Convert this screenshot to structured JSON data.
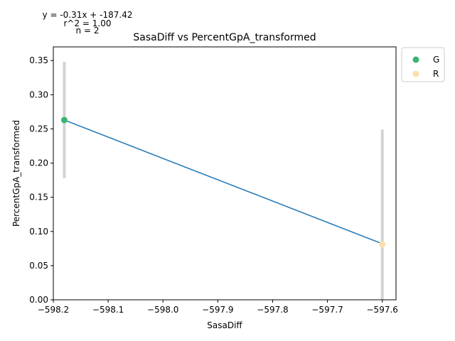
{
  "chart_data": {
    "type": "scatter",
    "title": "SasaDiff vs PercentGpA_transformed",
    "xlabel": "SasaDiff",
    "ylabel": "PercentGpA_transformed",
    "xlim": [
      -598.2,
      -597.575
    ],
    "ylim": [
      0.0,
      0.37
    ],
    "x_ticks": [
      -598.2,
      -598.1,
      -598.0,
      -597.9,
      -597.8,
      -597.7,
      -597.6
    ],
    "x_tick_labels": [
      "−598.2",
      "−598.1",
      "−598.0",
      "−597.9",
      "−597.8",
      "−597.7",
      "−597.6"
    ],
    "y_ticks": [
      0.0,
      0.05,
      0.1,
      0.15,
      0.2,
      0.25,
      0.3,
      0.35
    ],
    "y_tick_labels": [
      "0.00",
      "0.05",
      "0.10",
      "0.15",
      "0.20",
      "0.25",
      "0.30",
      "0.35"
    ],
    "grid": false,
    "legend_placement": "outside-top-right",
    "series": [
      {
        "name": "G",
        "color": "#3cb371",
        "points": [
          {
            "x": -598.18,
            "y": 0.263,
            "err_low": 0.178,
            "err_high": 0.348
          }
        ]
      },
      {
        "name": "R",
        "color": "#ffdead",
        "points": [
          {
            "x": -597.6,
            "y": 0.081,
            "err_low": 0.0,
            "err_high": 0.249
          }
        ]
      }
    ],
    "error_bar_color": "#d3d3d3",
    "fit_line": {
      "color": "#1f77b4",
      "points": [
        {
          "x": -598.18,
          "y": 0.263
        },
        {
          "x": -597.6,
          "y": 0.082
        }
      ]
    },
    "annotations": [
      "y = -0.31x + -187.42",
      "r^2 = 1.00",
      "n = 2"
    ]
  }
}
